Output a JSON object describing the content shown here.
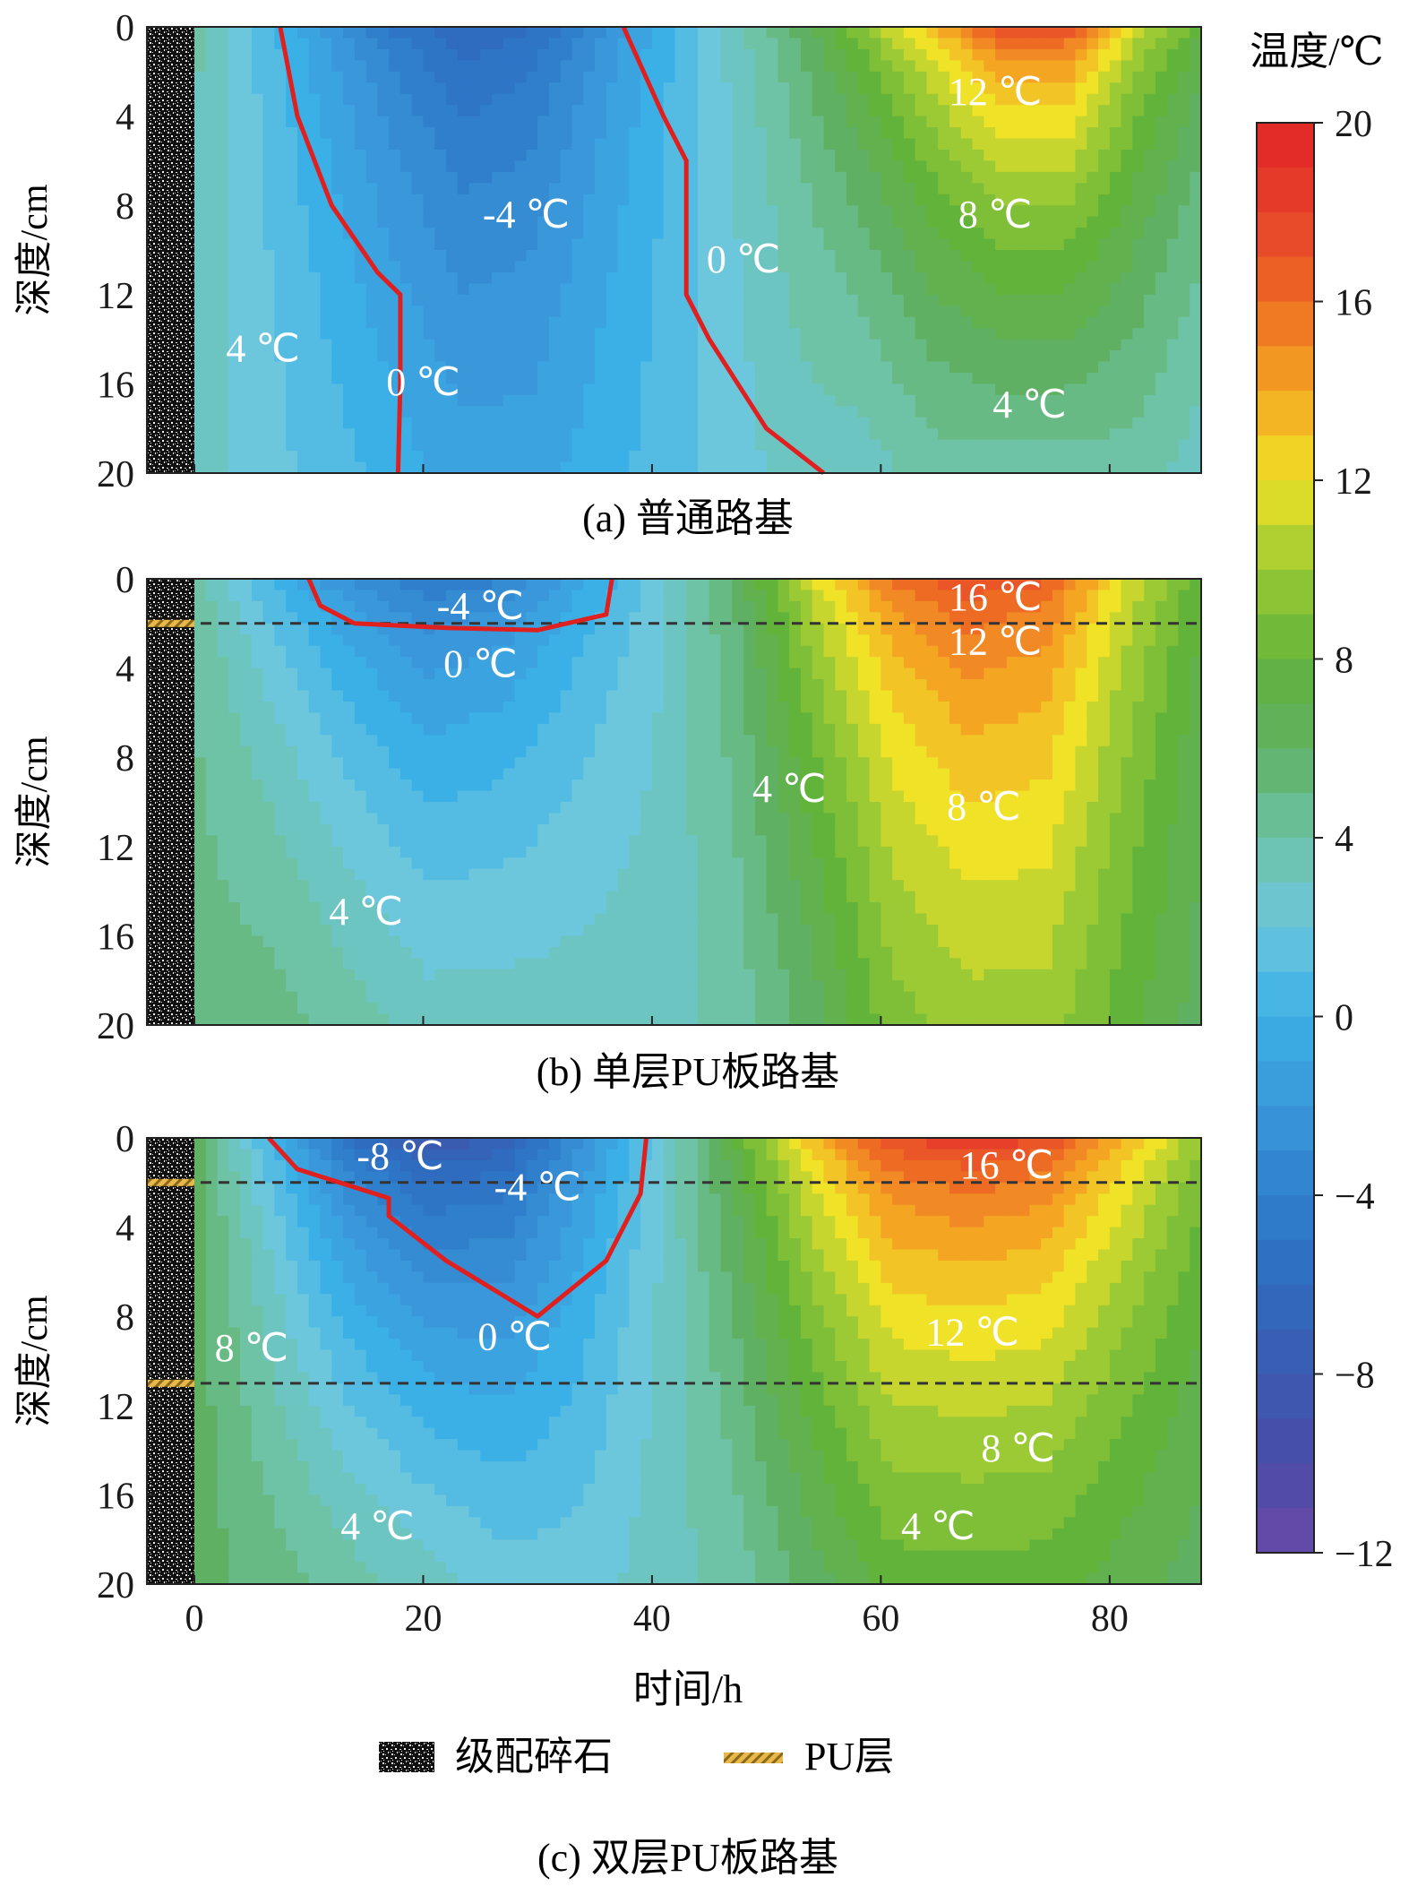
{
  "colorbar": {
    "title": "温度/℃",
    "min": -12,
    "max": 20,
    "ticks": [
      "20",
      "16",
      "12",
      "8",
      "4",
      "0",
      "−4",
      "−8",
      "−12"
    ],
    "tick_values": [
      20,
      16,
      12,
      8,
      4,
      0,
      -4,
      -8,
      -12
    ],
    "stops": [
      {
        "v": -12,
        "c": "#6a4aa8"
      },
      {
        "v": -10,
        "c": "#4a4ba8"
      },
      {
        "v": -8,
        "c": "#3b5bb0"
      },
      {
        "v": -6,
        "c": "#2f6bbf"
      },
      {
        "v": -4,
        "c": "#2f7fcc"
      },
      {
        "v": -2,
        "c": "#3a98da"
      },
      {
        "v": 0,
        "c": "#3bb0e6"
      },
      {
        "v": 2,
        "c": "#6cc7dd"
      },
      {
        "v": 4,
        "c": "#6ec3a6"
      },
      {
        "v": 6,
        "c": "#5fb062"
      },
      {
        "v": 8,
        "c": "#62b33a"
      },
      {
        "v": 10,
        "c": "#9bca35"
      },
      {
        "v": 12,
        "c": "#f0e226"
      },
      {
        "v": 14,
        "c": "#f4a623"
      },
      {
        "v": 16,
        "c": "#ee6b24"
      },
      {
        "v": 18,
        "c": "#e6402a"
      },
      {
        "v": 20,
        "c": "#e22427"
      }
    ]
  },
  "legend": {
    "gravel": "级配碎石",
    "pu": "PU层"
  },
  "chart_data": [
    {
      "type": "heatmap",
      "caption": "(a)  普通路基",
      "ylabel": "深度/cm",
      "xlabel": "",
      "xlim": [
        0,
        88
      ],
      "ylim": [
        20,
        0
      ],
      "y_ticks": [
        0,
        4,
        8,
        12,
        16,
        20
      ],
      "x_ticks": [
        0,
        20,
        40,
        60,
        80
      ],
      "pu_layers_depth": [],
      "surface_temp": [
        4,
        1,
        -2,
        -5,
        -7,
        -6,
        -3,
        0,
        3,
        6,
        10,
        14,
        18,
        18,
        12,
        8
      ],
      "bottom_temp": [
        3,
        2,
        1,
        0,
        -1,
        -1,
        0,
        1,
        2,
        3,
        3,
        4,
        4,
        4,
        4,
        3
      ],
      "freezing_front_0C": [
        {
          "x": [
            7.5,
            9,
            12,
            16,
            18,
            18,
            17.8
          ],
          "y": [
            0,
            4,
            8,
            11,
            12,
            16,
            20
          ]
        },
        {
          "x": [
            37.5,
            41,
            43,
            43,
            45,
            50,
            55
          ],
          "y": [
            0,
            4,
            6,
            12,
            14,
            18,
            20
          ]
        }
      ],
      "contour_labels": [
        {
          "text": "-4 ℃",
          "x": 29,
          "y": 9
        },
        {
          "text": "0 ℃",
          "x": 48,
          "y": 11
        },
        {
          "text": "12 ℃",
          "x": 70,
          "y": 3.5
        },
        {
          "text": "8 ℃",
          "x": 70,
          "y": 9
        },
        {
          "text": "4 ℃",
          "x": 6,
          "y": 15
        },
        {
          "text": "0 ℃",
          "x": 20,
          "y": 16.5
        },
        {
          "text": "4 ℃",
          "x": 73,
          "y": 17.5
        }
      ]
    },
    {
      "type": "heatmap",
      "caption": "(b) 单层PU板路基",
      "ylabel": "深度/cm",
      "xlabel": "",
      "xlim": [
        0,
        88
      ],
      "ylim": [
        20,
        0
      ],
      "y_ticks": [
        0,
        4,
        8,
        12,
        16,
        20
      ],
      "x_ticks": [
        0,
        20,
        40,
        60,
        80
      ],
      "pu_layers_depth": [
        2
      ],
      "surface_temp": [
        4,
        0,
        -3,
        -5,
        -4,
        -1,
        2,
        6,
        12,
        16,
        18,
        17,
        12,
        8
      ],
      "bottom_temp": [
        5,
        5,
        4,
        3,
        3,
        3,
        3,
        4,
        6,
        9,
        10,
        10,
        8,
        6
      ],
      "freezing_front_0C": [
        {
          "x": [
            10,
            11,
            14,
            22,
            30,
            36,
            36.5
          ],
          "y": [
            0,
            1.2,
            2,
            2.2,
            2.3,
            1.6,
            0
          ]
        }
      ],
      "contour_labels": [
        {
          "text": "-4 ℃",
          "x": 25,
          "y": 1.8
        },
        {
          "text": "16 ℃",
          "x": 70,
          "y": 1.4
        },
        {
          "text": "12 ℃",
          "x": 70,
          "y": 3.4
        },
        {
          "text": "0 ℃",
          "x": 25,
          "y": 4.4
        },
        {
          "text": "4 ℃",
          "x": 52,
          "y": 10
        },
        {
          "text": "8 ℃",
          "x": 69,
          "y": 10.8
        },
        {
          "text": "4 ℃",
          "x": 15,
          "y": 15.5
        }
      ]
    },
    {
      "type": "heatmap",
      "caption": "(c)  双层PU板路基",
      "ylabel": "深度/cm",
      "xlabel": "时间/h",
      "xlim": [
        0,
        88
      ],
      "ylim": [
        20,
        0
      ],
      "y_ticks": [
        0,
        4,
        8,
        12,
        16,
        20
      ],
      "x_ticks": [
        0,
        20,
        40,
        60,
        80
      ],
      "pu_layers_depth": [
        2,
        11
      ],
      "surface_temp": [
        6,
        0,
        -6,
        -9,
        -8,
        -3,
        2,
        8,
        14,
        18,
        19,
        18,
        14,
        10
      ],
      "bottom_temp": [
        6,
        5,
        4,
        3,
        2,
        2,
        3,
        4,
        6,
        8,
        8,
        8,
        7,
        6
      ],
      "freezing_front_0C": [
        {
          "x": [
            6.5,
            9,
            17,
            17,
            22,
            30,
            36,
            39,
            39.5
          ],
          "y": [
            0,
            1.4,
            2.7,
            3.5,
            5.5,
            8,
            5.5,
            2.5,
            0
          ]
        }
      ],
      "contour_labels": [
        {
          "text": "-8 ℃",
          "x": 18,
          "y": 1.4
        },
        {
          "text": "-4 ℃",
          "x": 30,
          "y": 2.8
        },
        {
          "text": "16 ℃",
          "x": 71,
          "y": 1.8
        },
        {
          "text": "0 ℃",
          "x": 28,
          "y": 9.5
        },
        {
          "text": "12 ℃",
          "x": 68,
          "y": 9.3
        },
        {
          "text": "8 ℃",
          "x": 5,
          "y": 10
        },
        {
          "text": "8 ℃",
          "x": 72,
          "y": 14.5
        },
        {
          "text": "4 ℃",
          "x": 16,
          "y": 18
        },
        {
          "text": "4 ℃",
          "x": 65,
          "y": 18
        }
      ]
    }
  ]
}
